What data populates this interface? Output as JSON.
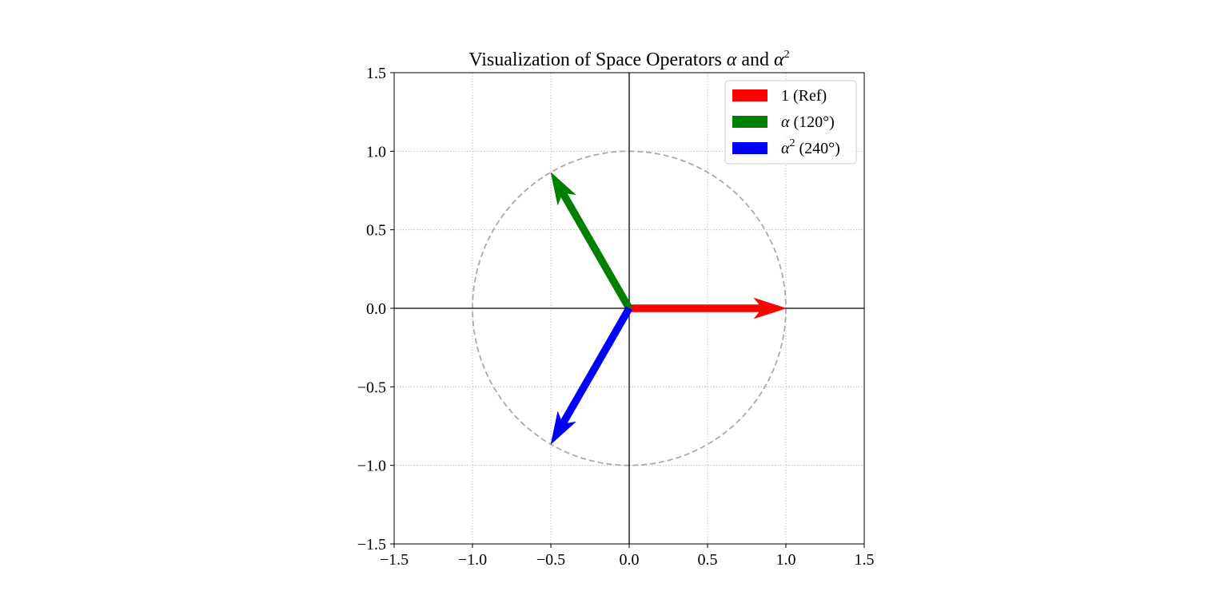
{
  "chart_data": {
    "type": "quiver",
    "title": {
      "prefix": "Visualization of Space Operators ",
      "sym1": "α",
      "mid": " and ",
      "sym2": "α",
      "sup": "2"
    },
    "xlim": [
      -1.5,
      1.5
    ],
    "ylim": [
      -1.5,
      1.5
    ],
    "xticks": [
      -1.5,
      -1.0,
      -0.5,
      0.0,
      0.5,
      1.0,
      1.5
    ],
    "yticks": [
      -1.5,
      -1.0,
      -0.5,
      0.0,
      0.5,
      1.0,
      1.5
    ],
    "xtick_labels": [
      "−1.5",
      "−1.0",
      "−0.5",
      "0.0",
      "0.5",
      "1.0",
      "1.5"
    ],
    "ytick_labels": [
      "−1.5",
      "−1.0",
      "−0.5",
      "0.0",
      "0.5",
      "1.0",
      "1.5"
    ],
    "grid": true,
    "grid_style": "dotted",
    "axis_lines_through_origin": true,
    "unit_circle": {
      "radius": 1.0,
      "style": "dashed",
      "color": "#aaaaaa"
    },
    "legend_position": "upper right",
    "series": [
      {
        "key": "ref",
        "name": "1 (Ref)",
        "start": [
          0,
          0
        ],
        "end": [
          1.0,
          0.0
        ],
        "angle_deg": 0,
        "color": "#ff0000",
        "label": {
          "main": "1 (Ref)",
          "sym": "",
          "sup": "",
          "rest": ""
        }
      },
      {
        "key": "alpha",
        "name": "α (120°)",
        "start": [
          0,
          0
        ],
        "end": [
          -0.5,
          0.866
        ],
        "angle_deg": 120,
        "color": "#008000",
        "label": {
          "main": "",
          "sym": "α",
          "sup": "",
          "rest": " (120°)"
        }
      },
      {
        "key": "alpha2",
        "name": "α² (240°)",
        "start": [
          0,
          0
        ],
        "end": [
          -0.5,
          -0.866
        ],
        "angle_deg": 240,
        "color": "#0000ff",
        "label": {
          "main": "",
          "sym": "α",
          "sup": "2",
          "rest": " (240°)"
        }
      }
    ]
  }
}
